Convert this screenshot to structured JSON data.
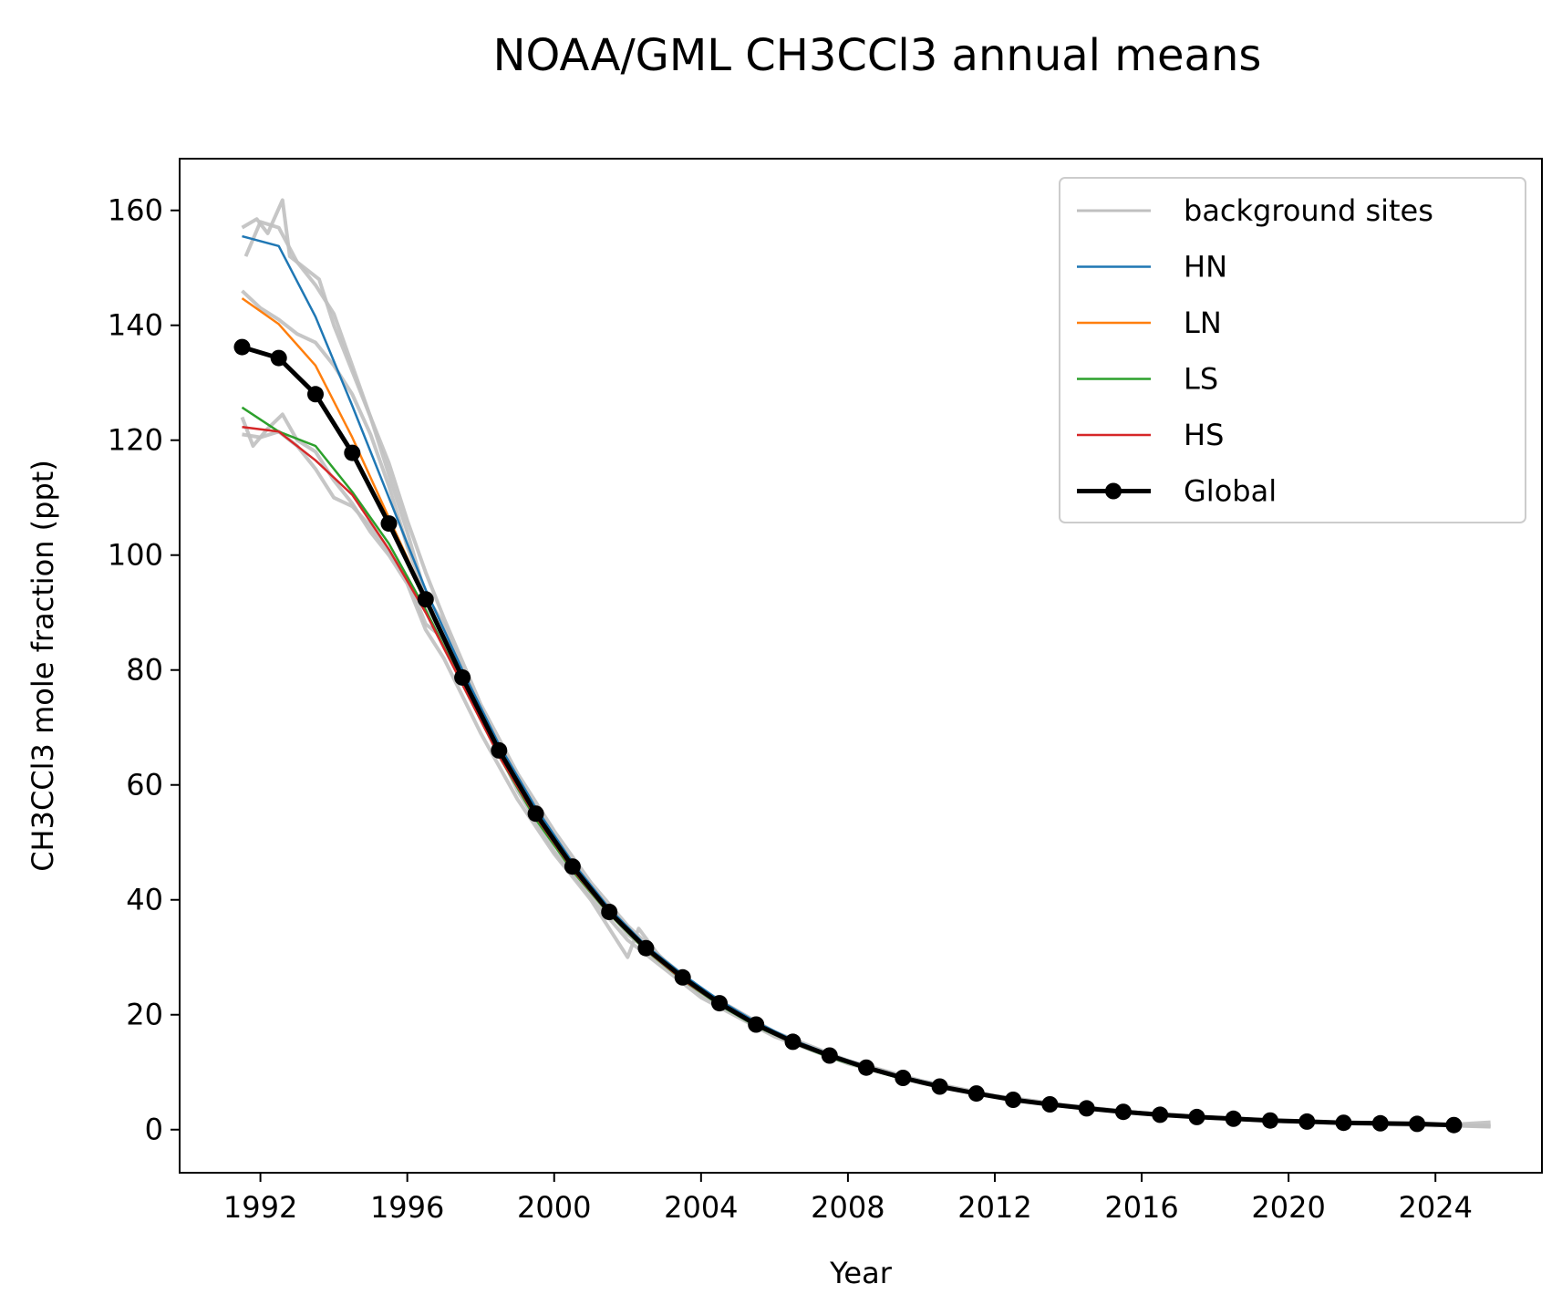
{
  "chart_data": {
    "type": "line",
    "title": "NOAA/GML CH3CCl3 annual means",
    "xlabel": "Year",
    "ylabel": "CH3CCl3 mole fraction (ppt)",
    "xlim": [
      1989.8,
      2026.9
    ],
    "ylim": [
      -7.5,
      169
    ],
    "xticks": [
      1992,
      1996,
      2000,
      2004,
      2008,
      2012,
      2016,
      2020,
      2024
    ],
    "yticks": [
      0,
      20,
      40,
      60,
      80,
      100,
      120,
      140,
      160
    ],
    "grid": false,
    "legend_position": "top-right",
    "x": [
      1991.5,
      1992.5,
      1993.5,
      1994.5,
      1995.5,
      1996.5,
      1997.5,
      1998.5,
      1999.5,
      2000.5,
      2001.5,
      2002.5,
      2003.5,
      2004.5,
      2005.5,
      2006.5,
      2007.5,
      2008.5,
      2009.5,
      2010.5,
      2011.5,
      2012.5,
      2013.5,
      2014.5,
      2015.5,
      2016.5,
      2017.5,
      2018.5,
      2019.5,
      2020.5,
      2021.5,
      2022.5,
      2023.5,
      2024.5
    ],
    "series": [
      {
        "name": "HN",
        "color": "#1f77b4",
        "x": [
          1991.5,
          1992.5,
          1993.5,
          1994.5,
          1995.5,
          1996.5,
          1997.5,
          1998.5,
          1999.5,
          2000.5,
          2001.5,
          2002.5,
          2003.5,
          2004.5,
          2005.5,
          2006.5,
          2007.5,
          2008.5,
          2009.5,
          2010.5,
          2011.5,
          2012.5,
          2013.5,
          2014.5,
          2015.5,
          2016.5,
          2017.5,
          2018.5,
          2019.5,
          2020.5,
          2021.5,
          2022.5,
          2023.5,
          2024.5
        ],
        "values": [
          155.5,
          153.8,
          141.5,
          126.0,
          110.0,
          94.0,
          80.0,
          67.0,
          56.0,
          46.5,
          38.5,
          32.0,
          27.0,
          22.5,
          18.7,
          15.6,
          13.1,
          11.0,
          9.2,
          7.7,
          6.4,
          5.4,
          4.5,
          3.8,
          3.2,
          2.7,
          2.3,
          2.0,
          1.7,
          1.5,
          1.3,
          1.1,
          1.0,
          0.9
        ]
      },
      {
        "name": "LN",
        "color": "#ff7f0e",
        "x": [
          1991.5,
          1992.5,
          1993.5,
          1994.5,
          1995.5,
          1996.5,
          1997.5,
          1998.5,
          1999.5,
          2000.5,
          2001.5,
          2002.5,
          2003.5,
          2004.5,
          2005.5,
          2006.5,
          2007.5,
          2008.5,
          2009.5,
          2010.5,
          2011.5,
          2012.5,
          2013.5,
          2014.5,
          2015.5,
          2016.5,
          2017.5,
          2018.5,
          2019.5,
          2020.5,
          2021.5,
          2022.5,
          2023.5,
          2024.5
        ],
        "values": [
          144.7,
          140.2,
          133.0,
          120.5,
          106.5,
          92.5,
          79.0,
          66.3,
          55.3,
          46.0,
          38.0,
          31.7,
          26.5,
          22.0,
          18.3,
          15.4,
          12.9,
          10.8,
          9.0,
          7.6,
          6.3,
          5.3,
          4.4,
          3.7,
          3.1,
          2.6,
          2.2,
          1.9,
          1.7,
          1.4,
          1.2,
          1.1,
          1.0,
          0.8
        ]
      },
      {
        "name": "LS",
        "color": "#2ca02c",
        "x": [
          1991.5,
          1992.5,
          1993.5,
          1994.5,
          1995.5,
          1996.5,
          1997.5,
          1998.5,
          1999.5,
          2000.5,
          2001.5,
          2002.5,
          2003.5,
          2004.5,
          2005.5,
          2006.5,
          2007.5,
          2008.5,
          2009.5,
          2010.5,
          2011.5,
          2012.5,
          2013.5,
          2014.5,
          2015.5,
          2016.5,
          2017.5,
          2018.5,
          2019.5,
          2020.5,
          2021.5,
          2022.5,
          2023.5,
          2024.5
        ],
        "values": [
          125.7,
          121.5,
          119.0,
          111.0,
          102.0,
          90.5,
          77.5,
          65.0,
          54.0,
          45.0,
          37.5,
          31.2,
          26.0,
          21.7,
          18.0,
          15.1,
          12.6,
          10.6,
          8.8,
          7.4,
          6.2,
          5.2,
          4.3,
          3.6,
          3.0,
          2.6,
          2.2,
          1.9,
          1.6,
          1.4,
          1.2,
          1.0,
          0.9,
          0.8
        ]
      },
      {
        "name": "HS",
        "color": "#d62728",
        "x": [
          1991.5,
          1992.5,
          1993.5,
          1994.5,
          1995.5,
          1996.5,
          1997.5,
          1998.5,
          1999.5,
          2000.5,
          2001.5,
          2002.5,
          2003.5,
          2004.5,
          2005.5,
          2006.5,
          2007.5,
          2008.5,
          2009.5,
          2010.5,
          2011.5,
          2012.5,
          2013.5,
          2014.5,
          2015.5,
          2016.5,
          2017.5,
          2018.5,
          2019.5,
          2020.5,
          2021.5,
          2022.5,
          2023.5,
          2024.5
        ],
        "values": [
          122.3,
          121.5,
          116.5,
          110.5,
          101.0,
          90.0,
          77.5,
          65.0,
          54.5,
          45.3,
          37.6,
          31.3,
          26.1,
          21.8,
          18.1,
          15.1,
          12.7,
          10.6,
          8.9,
          7.4,
          6.2,
          5.2,
          4.3,
          3.6,
          3.0,
          2.6,
          2.2,
          1.9,
          1.6,
          1.4,
          1.2,
          1.0,
          0.9,
          0.8
        ]
      },
      {
        "name": "Global",
        "color": "#000000",
        "markers": true,
        "x": [
          1991.5,
          1992.5,
          1993.5,
          1994.5,
          1995.5,
          1996.5,
          1997.5,
          1998.5,
          1999.5,
          2000.5,
          2001.5,
          2002.5,
          2003.5,
          2004.5,
          2005.5,
          2006.5,
          2007.5,
          2008.5,
          2009.5,
          2010.5,
          2011.5,
          2012.5,
          2013.5,
          2014.5,
          2015.5,
          2016.5,
          2017.5,
          2018.5,
          2019.5,
          2020.5,
          2021.5,
          2022.5,
          2023.5,
          2024.5
        ],
        "values": [
          136.2,
          134.3,
          128.0,
          117.8,
          105.5,
          92.3,
          78.7,
          66.0,
          55.0,
          45.8,
          37.9,
          31.6,
          26.5,
          22.0,
          18.3,
          15.3,
          12.9,
          10.8,
          9.0,
          7.5,
          6.3,
          5.2,
          4.4,
          3.7,
          3.1,
          2.6,
          2.2,
          1.9,
          1.6,
          1.4,
          1.2,
          1.1,
          1.0,
          0.8
        ]
      }
    ],
    "background_sites": {
      "name": "background sites",
      "color": "#c0c0c0",
      "sites": [
        {
          "x": [
            1991.5,
            1991.9,
            1992.2,
            1992.6,
            1992.8,
            1993.2,
            1993.6,
            1994.0,
            1994.5,
            1995.0,
            1995.5,
            1996.0,
            1996.5,
            1997.0,
            1997.5,
            1998.0,
            1998.5,
            1999.0,
            1999.5,
            2000.0,
            2001.0,
            2002.0,
            2003.0,
            2004.0,
            2005.0,
            2006.0,
            2007.0,
            2008.0,
            2010.0,
            2012.0,
            2014.0,
            2016.0,
            2018.0,
            2020.0,
            2022.0,
            2024.0,
            2025.5
          ],
          "values": [
            157.0,
            158.5,
            156.0,
            161.8,
            152.0,
            150.0,
            148.0,
            140.0,
            132.0,
            124.0,
            114.0,
            104.0,
            93.0,
            88.0,
            80.0,
            73.0,
            66.5,
            61.0,
            56.0,
            51.0,
            42.0,
            34.0,
            29.0,
            24.5,
            20.5,
            17.0,
            14.2,
            11.8,
            8.3,
            5.8,
            4.1,
            2.9,
            2.1,
            1.5,
            1.1,
            0.8,
            0.6
          ]
        },
        {
          "x": [
            1991.5,
            1992.0,
            1992.5,
            1993.0,
            1993.5,
            1994.0,
            1994.5,
            1995.0,
            1995.5,
            1996.0,
            1996.5,
            1997.0,
            1998.0,
            1999.0,
            2000.0,
            2001.0,
            2002.0,
            2003.0,
            2004.0,
            2006.0,
            2008.0,
            2010.0,
            2012.0,
            2014.0,
            2016.0,
            2018.0,
            2020.0,
            2022.0,
            2024.0,
            2025.5
          ],
          "values": [
            146.0,
            143.0,
            141.0,
            138.5,
            137.0,
            133.0,
            128.0,
            121.0,
            112.0,
            101.5,
            93.0,
            84.0,
            72.0,
            60.5,
            51.0,
            42.0,
            35.0,
            29.0,
            24.0,
            16.8,
            11.9,
            8.4,
            5.9,
            4.2,
            2.9,
            2.1,
            1.5,
            1.1,
            0.8,
            0.7
          ]
        },
        {
          "x": [
            1991.5,
            1991.8,
            1992.2,
            1992.6,
            1993.0,
            1993.5,
            1994.0,
            1994.5,
            1995.0,
            1995.5,
            1996.0,
            1996.5,
            1997.0,
            1998.0,
            1999.0,
            2000.0,
            2001.0,
            2002.0,
            2002.3,
            2003.0,
            2004.0,
            2006.0,
            2008.0,
            2010.0,
            2012.0,
            2014.0,
            2016.0,
            2018.0,
            2020.0,
            2022.0,
            2024.0,
            2025.5
          ],
          "values": [
            124.0,
            119.0,
            122.0,
            124.5,
            120.0,
            118.0,
            113.0,
            109.0,
            104.0,
            100.0,
            95.0,
            87.0,
            82.0,
            69.0,
            57.5,
            48.0,
            40.0,
            30.0,
            35.0,
            29.0,
            23.5,
            16.4,
            11.6,
            8.2,
            5.7,
            4.0,
            2.8,
            2.0,
            1.4,
            1.0,
            0.8,
            0.5
          ]
        },
        {
          "x": [
            1991.5,
            1992.0,
            1992.5,
            1993.0,
            1993.5,
            1994.0,
            1994.5,
            1995.0,
            1995.5,
            1996.0,
            1996.5,
            1997.0,
            1997.5,
            1998.0,
            1999.0,
            2000.0,
            2001.0,
            2002.0,
            2003.0,
            2004.0,
            2006.0,
            2008.0,
            2010.0,
            2012.0,
            2014.0,
            2016.0,
            2018.0,
            2020.0,
            2022.0,
            2024.0,
            2025.5
          ],
          "values": [
            121.0,
            120.5,
            121.5,
            119.0,
            115.0,
            110.0,
            108.5,
            105.0,
            100.5,
            96.0,
            88.0,
            85.5,
            78.0,
            72.5,
            59.0,
            48.5,
            40.5,
            33.0,
            28.0,
            23.0,
            16.2,
            11.5,
            8.1,
            5.7,
            4.0,
            2.8,
            2.0,
            1.4,
            1.0,
            0.7,
            1.3
          ]
        },
        {
          "x": [
            1991.6,
            1992.0,
            1992.5,
            1993.0,
            1993.5,
            1994.0,
            1994.5,
            1995.0,
            1995.5,
            1996.0,
            1996.5,
            1997.0,
            1998.0,
            1999.0,
            2000.0,
            2001.0,
            2002.0,
            2003.0,
            2004.0,
            2006.0,
            2008.0,
            2010.0,
            2012.0,
            2014.0,
            2016.0,
            2018.0,
            2020.0,
            2022.0,
            2024.0,
            2025.5
          ],
          "values": [
            152.0,
            158.0,
            157.0,
            151.0,
            147.0,
            142.0,
            133.0,
            124.0,
            116.0,
            106.0,
            97.0,
            89.0,
            74.0,
            62.0,
            52.0,
            43.0,
            35.5,
            29.5,
            24.3,
            17.0,
            12.0,
            8.5,
            5.9,
            4.2,
            2.9,
            2.1,
            1.5,
            1.1,
            0.8,
            0.6
          ]
        }
      ]
    }
  }
}
